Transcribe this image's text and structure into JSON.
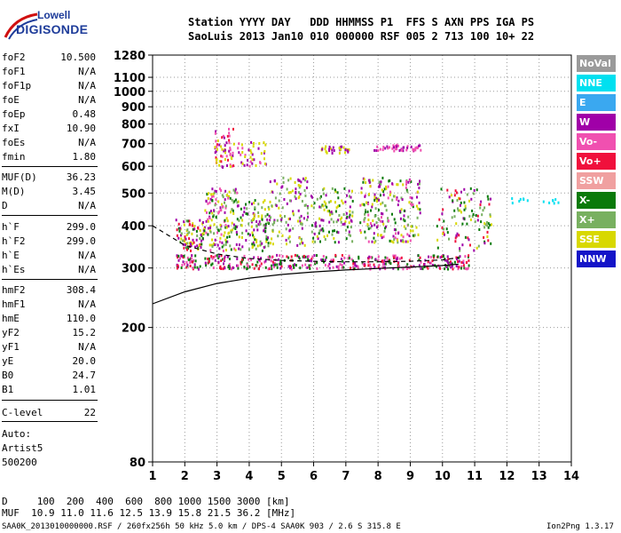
{
  "logo": {
    "top": "Lowell",
    "bottom": "DIGISONDE"
  },
  "header": {
    "line1": "Station YYYY DAY   DDD HHMMSS P1  FFS S AXN PPS IGA PS",
    "line2": "SaoLuis 2013 Jan10 010 000000 RSF 005 2 713 100 10+ 22"
  },
  "params": [
    {
      "k": "foF2",
      "v": "10.500"
    },
    {
      "k": "foF1",
      "v": "N/A"
    },
    {
      "k": "foF1p",
      "v": "N/A"
    },
    {
      "k": "foE",
      "v": "N/A"
    },
    {
      "k": "foEp",
      "v": "0.48"
    },
    {
      "k": "fxI",
      "v": "10.90"
    },
    {
      "k": "foEs",
      "v": "N/A"
    },
    {
      "k": "fmin",
      "v": "1.80"
    },
    {
      "k": "MUF(D)",
      "v": "36.23"
    },
    {
      "k": "M(D)",
      "v": "3.45"
    },
    {
      "k": "D",
      "v": "N/A"
    },
    {
      "k": "h`F",
      "v": "299.0"
    },
    {
      "k": "h`F2",
      "v": "299.0"
    },
    {
      "k": "h`E",
      "v": "N/A"
    },
    {
      "k": "h`Es",
      "v": "N/A"
    },
    {
      "k": "hmF2",
      "v": "308.4"
    },
    {
      "k": "hmF1",
      "v": "N/A"
    },
    {
      "k": "hmE",
      "v": "110.0"
    },
    {
      "k": "yF2",
      "v": "15.2"
    },
    {
      "k": "yF1",
      "v": "N/A"
    },
    {
      "k": "yE",
      "v": "20.0"
    },
    {
      "k": "B0",
      "v": "24.7"
    },
    {
      "k": "B1",
      "v": "1.01"
    },
    {
      "k": "C-level",
      "v": "22"
    }
  ],
  "auto": {
    "line1": "Auto:",
    "line2": "Artist5",
    "line3": "500200"
  },
  "legend": [
    {
      "label": "NoVal",
      "color": "#9a9a9a"
    },
    {
      "label": "NNE",
      "color": "#00e0f0"
    },
    {
      "label": "E",
      "color": "#3aa8f0"
    },
    {
      "label": "W",
      "color": "#a000a8"
    },
    {
      "label": "Vo-",
      "color": "#f050b0"
    },
    {
      "label": "Vo+",
      "color": "#f0103c"
    },
    {
      "label": "SSW",
      "color": "#f0a0a0"
    },
    {
      "label": "X-",
      "color": "#0a7a0a"
    },
    {
      "label": "X+",
      "color": "#78b060"
    },
    {
      "label": "SSE",
      "color": "#d8d800"
    },
    {
      "label": "NNW",
      "color": "#1414c8"
    }
  ],
  "footer": {
    "line1": "D     100  200  400  600  800 1000 1500 3000 [km]",
    "line2": "MUF  10.9 11.0 11.6 12.5 13.9 15.8 21.5 36.2 [MHz]",
    "line3": "SAA0K_2013010000000.RSF / 260fx256h 50 kHz 5.0 km / DPS-4 SAA0K 903 / 2.6 S 315.8 E",
    "version": "Ion2Png 1.3.17"
  },
  "chart_data": {
    "type": "scatter",
    "title": "",
    "xlabel": "",
    "ylabel": "",
    "xlim": [
      1,
      14
    ],
    "ylim": [
      80,
      1280
    ],
    "x_ticks": [
      1,
      2,
      3,
      4,
      5,
      6,
      7,
      8,
      9,
      10,
      11,
      12,
      13,
      14
    ],
    "y_ticks": [
      80,
      200,
      300,
      400,
      500,
      600,
      700,
      800,
      900,
      1000,
      1100,
      1280
    ],
    "y_scale": "log",
    "grid": true,
    "clusters": [
      {
        "x_range": [
          1.7,
          2.6
        ],
        "h_range": [
          340,
          420
        ],
        "colors": [
          "#d8d800",
          "#a000a8",
          "#0a7a0a",
          "#78b060",
          "#f0103c"
        ],
        "density": 90
      },
      {
        "x_range": [
          2.6,
          3.6
        ],
        "h_range": [
          340,
          520
        ],
        "colors": [
          "#d8d800",
          "#a000a8",
          "#f050b0",
          "#0a7a0a",
          "#78b060"
        ],
        "density": 150
      },
      {
        "x_range": [
          2.9,
          3.5
        ],
        "h_range": [
          600,
          780
        ],
        "colors": [
          "#a000a8",
          "#f050b0",
          "#f0103c",
          "#d8d800"
        ],
        "density": 60
      },
      {
        "x_range": [
          3.6,
          4.6
        ],
        "h_range": [
          340,
          480
        ],
        "colors": [
          "#d8d800",
          "#a000a8",
          "#78b060",
          "#0a7a0a"
        ],
        "density": 110
      },
      {
        "x_range": [
          3.6,
          4.5
        ],
        "h_range": [
          600,
          720
        ],
        "colors": [
          "#a000a8",
          "#f050b0",
          "#d8d800"
        ],
        "density": 40
      },
      {
        "x_range": [
          4.6,
          5.8
        ],
        "h_range": [
          350,
          560
        ],
        "colors": [
          "#d8d800",
          "#a000a8",
          "#78b060"
        ],
        "density": 120
      },
      {
        "x_range": [
          5.9,
          7.2
        ],
        "h_range": [
          360,
          520
        ],
        "colors": [
          "#d8d800",
          "#a000a8",
          "#78b060",
          "#0a7a0a"
        ],
        "density": 120
      },
      {
        "x_range": [
          6.2,
          7.1
        ],
        "h_range": [
          660,
          700
        ],
        "colors": [
          "#d8d800",
          "#a000a8"
        ],
        "density": 30
      },
      {
        "x_range": [
          7.4,
          9.3
        ],
        "h_range": [
          360,
          560
        ],
        "colors": [
          "#a000a8",
          "#d8d800",
          "#78b060",
          "#0a7a0a",
          "#f050b0"
        ],
        "density": 220
      },
      {
        "x_range": [
          7.8,
          9.3
        ],
        "h_range": [
          670,
          700
        ],
        "colors": [
          "#a000a8",
          "#f050b0"
        ],
        "density": 45
      },
      {
        "x_range": [
          9.8,
          11.5
        ],
        "h_range": [
          340,
          520
        ],
        "colors": [
          "#d8d800",
          "#a000a8",
          "#78b060",
          "#0a7a0a",
          "#f0103c"
        ],
        "density": 110
      },
      {
        "x_range": [
          12.1,
          13.6
        ],
        "h_range": [
          470,
          490
        ],
        "colors": [
          "#00e0f0"
        ],
        "density": 14
      },
      {
        "x_range": [
          1.7,
          10.8
        ],
        "h_range": [
          300,
          330
        ],
        "colors": [
          "#f0103c",
          "#f050b0",
          "#0a7a0a",
          "#a000a8"
        ],
        "density": 420
      }
    ],
    "profile_solid": [
      [
        1.0,
        235
      ],
      [
        2.0,
        255
      ],
      [
        3.0,
        270
      ],
      [
        4.0,
        280
      ],
      [
        5.0,
        287
      ],
      [
        6.0,
        292
      ],
      [
        7.0,
        296
      ],
      [
        8.0,
        299
      ],
      [
        9.0,
        302
      ],
      [
        10.0,
        305
      ],
      [
        10.5,
        308
      ]
    ],
    "profile_dashed": [
      [
        1.0,
        400
      ],
      [
        2.0,
        350
      ],
      [
        3.0,
        330
      ],
      [
        4.0,
        320
      ],
      [
        5.0,
        316
      ],
      [
        6.0,
        314
      ],
      [
        7.0,
        313
      ],
      [
        8.0,
        313
      ],
      [
        9.0,
        314
      ],
      [
        10.0,
        317
      ],
      [
        10.5,
        322
      ]
    ]
  }
}
